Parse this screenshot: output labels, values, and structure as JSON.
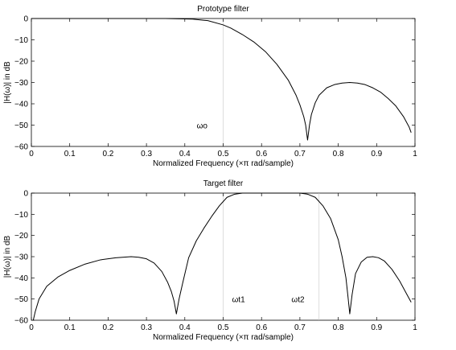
{
  "chart_data": [
    {
      "type": "line",
      "title": "Prototype filter",
      "xlabel": "Normalized Frequency  (×π rad/sample)",
      "ylabel": "|H(ω)| in dB",
      "xlim": [
        0,
        1
      ],
      "ylim": [
        -60,
        0
      ],
      "xticks": [
        "0",
        "0.1",
        "0.2",
        "0.3",
        "0.4",
        "0.5",
        "0.6",
        "0.7",
        "0.8",
        "0.9",
        "1"
      ],
      "yticks": [
        "0",
        "−10",
        "−20",
        "−30",
        "−40",
        "−50",
        "−60"
      ],
      "grid": false,
      "color": "#000000",
      "vlines": [
        0.5
      ],
      "annotations": [
        {
          "text": "ωo",
          "x": 0.445,
          "y": -50
        }
      ],
      "series": [
        {
          "x": [
            0.0,
            0.2,
            0.35,
            0.42,
            0.46,
            0.5,
            0.52,
            0.55,
            0.58,
            0.61,
            0.64,
            0.67,
            0.69,
            0.7,
            0.71,
            0.715,
            0.72,
            0.725,
            0.73,
            0.74,
            0.75,
            0.77,
            0.79,
            0.81,
            0.83,
            0.85,
            0.87,
            0.89,
            0.91,
            0.93,
            0.95,
            0.97,
            0.985,
            0.99
          ],
          "y": [
            0,
            0,
            0,
            -0.3,
            -1,
            -3,
            -4.5,
            -7.5,
            -11,
            -15.5,
            -21.5,
            -29,
            -36,
            -40.5,
            -46,
            -50,
            -57,
            -50,
            -45,
            -39.5,
            -36,
            -32.5,
            -31,
            -30.3,
            -30,
            -30.3,
            -31,
            -32.5,
            -34.5,
            -37.5,
            -41,
            -46,
            -51,
            -53.5
          ]
        }
      ]
    },
    {
      "type": "line",
      "title": "Target filter",
      "xlabel": "Normalized Frequency  (×π rad/sample)",
      "ylabel": "|H(ω)| in dB",
      "xlim": [
        0,
        1
      ],
      "ylim": [
        -60,
        0
      ],
      "xticks": [
        "0",
        "0.1",
        "0.2",
        "0.3",
        "0.4",
        "0.5",
        "0.6",
        "0.7",
        "0.8",
        "0.9",
        "1"
      ],
      "yticks": [
        "0",
        "−10",
        "−20",
        "−30",
        "−40",
        "−50",
        "−60"
      ],
      "grid": false,
      "color": "#000000",
      "vlines": [
        0.5,
        0.75
      ],
      "annotations": [
        {
          "text": "ωt1",
          "x": 0.54,
          "y": -50
        },
        {
          "text": "ωt2",
          "x": 0.695,
          "y": -50
        }
      ],
      "series": [
        {
          "x": [
            0.005,
            0.01,
            0.02,
            0.04,
            0.07,
            0.1,
            0.14,
            0.18,
            0.22,
            0.26,
            0.28,
            0.3,
            0.32,
            0.34,
            0.355,
            0.365,
            0.372,
            0.378,
            0.385,
            0.395,
            0.41,
            0.43,
            0.45,
            0.47,
            0.49,
            0.51,
            0.53,
            0.55,
            0.6,
            0.65,
            0.7,
            0.72,
            0.74,
            0.76,
            0.78,
            0.8,
            0.81,
            0.82,
            0.826,
            0.83,
            0.836,
            0.845,
            0.86,
            0.875,
            0.89,
            0.905,
            0.92,
            0.94,
            0.96,
            0.975,
            0.99
          ],
          "y": [
            -60,
            -56,
            -50,
            -44,
            -39.5,
            -36.5,
            -33.5,
            -31.5,
            -30.5,
            -30,
            -30.3,
            -31,
            -33,
            -37,
            -42,
            -46.5,
            -51,
            -57,
            -50,
            -42,
            -30.5,
            -22.5,
            -16.5,
            -11,
            -6,
            -2,
            -0.5,
            0,
            0,
            0,
            0,
            -0.5,
            -2,
            -6,
            -12,
            -22,
            -30,
            -40,
            -50,
            -57,
            -48,
            -38,
            -32.5,
            -30.3,
            -30,
            -30.5,
            -32,
            -36,
            -41.5,
            -46.5,
            -51.5
          ]
        }
      ]
    }
  ]
}
